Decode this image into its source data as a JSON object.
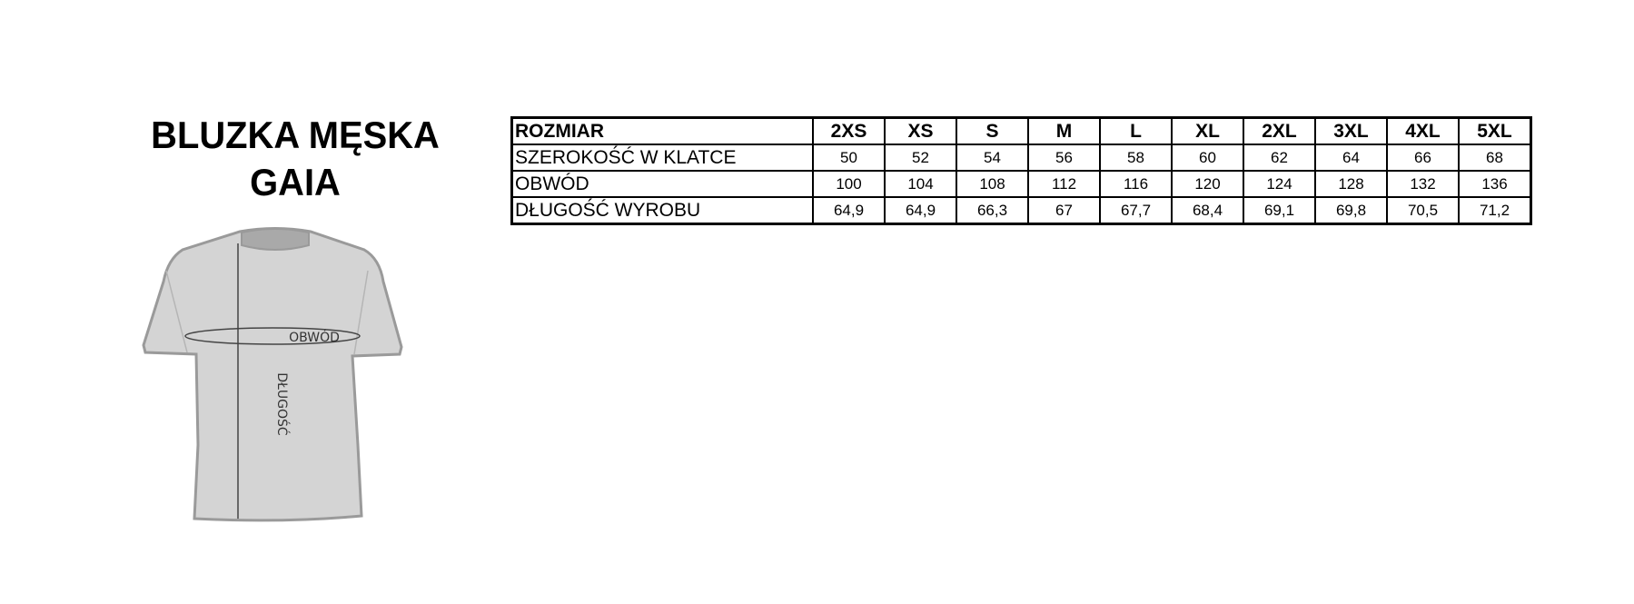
{
  "title": {
    "line1": "BLUZKA MĘSKA",
    "line2": "GAIA"
  },
  "diagram": {
    "circumference_label": "OBWÓD",
    "length_label": "DŁUGOŚĆ",
    "shirt_color": "#d4d4d4"
  },
  "table": {
    "header_label": "ROZMIAR",
    "sizes": [
      "2XS",
      "XS",
      "S",
      "M",
      "L",
      "XL",
      "2XL",
      "3XL",
      "4XL",
      "5XL"
    ],
    "rows": [
      {
        "label": "SZEROKOŚĆ W KLATCE",
        "values": [
          "50",
          "52",
          "54",
          "56",
          "58",
          "60",
          "62",
          "64",
          "66",
          "68"
        ]
      },
      {
        "label": "OBWÓD",
        "values": [
          "100",
          "104",
          "108",
          "112",
          "116",
          "120",
          "124",
          "128",
          "132",
          "136"
        ]
      },
      {
        "label": "DŁUGOŚĆ WYROBU",
        "values": [
          "64,9",
          "64,9",
          "66,3",
          "67",
          "67,7",
          "68,4",
          "69,1",
          "69,8",
          "70,5",
          "71,2"
        ]
      }
    ]
  }
}
